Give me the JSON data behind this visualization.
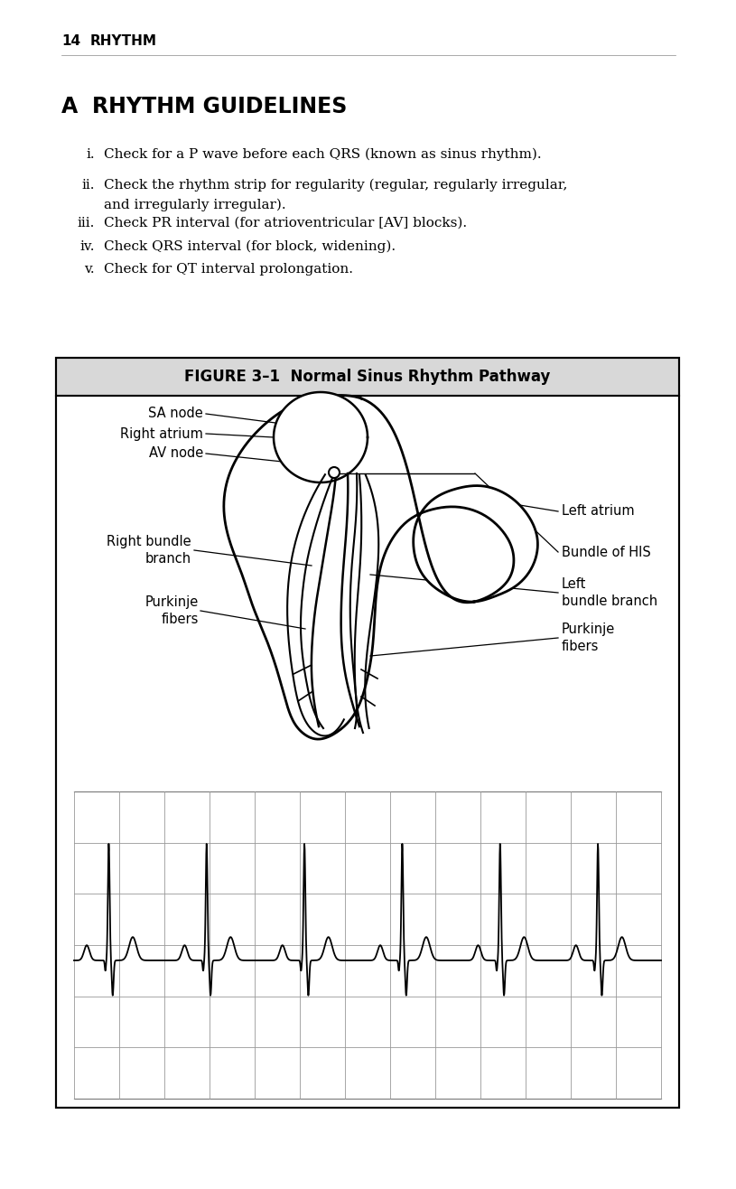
{
  "page_number": "14",
  "page_header": "RHYTHM",
  "section_letter": "A",
  "section_title": "RHYTHM GUIDELINES",
  "guidelines": [
    {
      "num": "i.",
      "text": "Check for a P wave before each QRS (known as sinus rhythm)."
    },
    {
      "num": "ii.",
      "text": "Check the rhythm strip for regularity (regular, regularly irregular,\nand irregularly irregular)."
    },
    {
      "num": "iii.",
      "text": "Check PR interval (for atrioventricular [AV] blocks)."
    },
    {
      "num": "iv.",
      "text": "Check QRS interval (for block, widening)."
    },
    {
      "num": "v.",
      "text": "Check for QT interval prolongation."
    }
  ],
  "figure_title": "FIGURE 3–1  Normal Sinus Rhythm Pathway",
  "background_color": "#ffffff",
  "box_bg": "#d8d8d8",
  "box_border": "#000000",
  "grid_color": "#999999",
  "ecg_color": "#000000",
  "text_color": "#000000"
}
